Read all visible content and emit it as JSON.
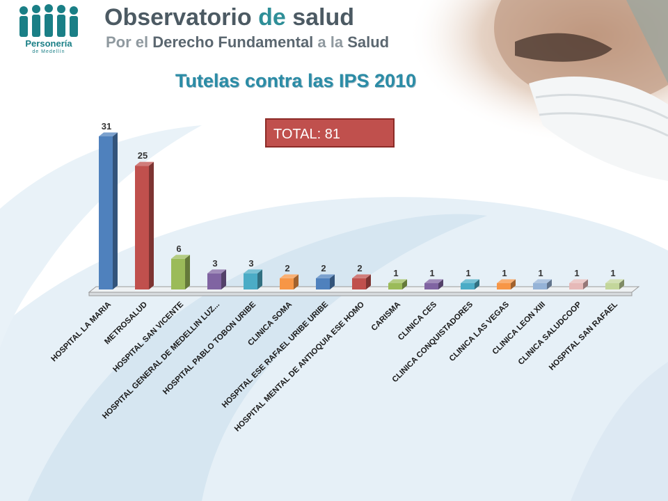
{
  "header": {
    "logo_name": "Personería",
    "logo_sub": "de Medellín",
    "title_part1": "Observatorio",
    "title_part2": " de ",
    "title_part3": "salud",
    "subtitle_part1": "Por el ",
    "subtitle_part2": "Derecho Fundamental",
    "subtitle_part3": " a la ",
    "subtitle_part4": "Salud"
  },
  "total_label": "TOTAL: 81",
  "chart_data": {
    "type": "bar",
    "title": "Tutelas contra las IPS 2010",
    "xlabel": "",
    "ylabel": "",
    "ylim": [
      0,
      31
    ],
    "grid": false,
    "categories": [
      "HOSPITAL LA MARIA",
      "METROSALUD",
      "HOSPITAL SAN VICENTE",
      "HOSPITAL GENERAL DE MEDELLIN LUZ...",
      "HOSPITAL PABLO TOBON URIBE",
      "CLINICA SOMA",
      "HOSPITAL ESE RAFAEL URIBE URIBE",
      "HOSPITAL MENTAL DE ANTIOQUIA ESE HOMO",
      "CARISMA",
      "CLINICA CES",
      "CLINICA CONQUISTADORES",
      "CLINICA LAS VEGAS",
      "CLINICA LEON XIII",
      "CLINICA SALUDCOOP",
      "HOSPITAL SAN RAFAEL"
    ],
    "values": [
      31,
      25,
      6,
      3,
      3,
      2,
      2,
      2,
      1,
      1,
      1,
      1,
      1,
      1,
      1
    ],
    "colors": [
      "#4f81bd",
      "#c0504d",
      "#9bbb59",
      "#8064a2",
      "#4bacc6",
      "#f79646",
      "#4f81bd",
      "#c0504d",
      "#9bbb59",
      "#8064a2",
      "#4bacc6",
      "#f79646",
      "#95b3d7",
      "#e6b9b8",
      "#c3d69b"
    ]
  }
}
